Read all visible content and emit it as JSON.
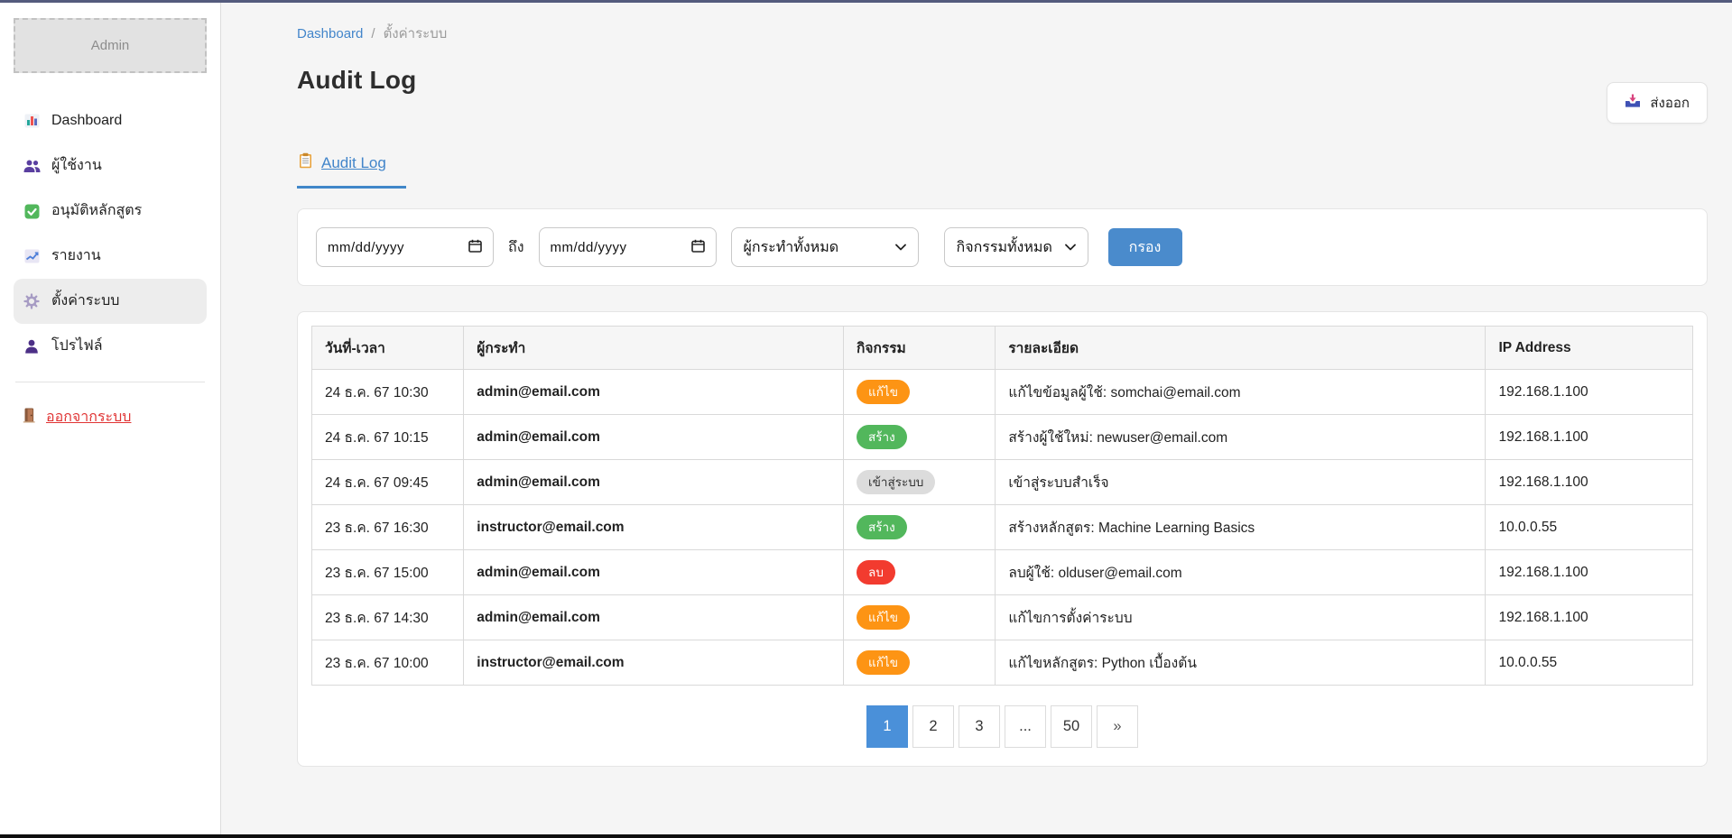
{
  "chrome": {
    "top_bar_color": "#545b7d",
    "bottom_bar_color": "#0e0e0e"
  },
  "sidebar": {
    "brand": "Admin",
    "items": [
      {
        "label": "Dashboard",
        "icon": "dashboard-icon",
        "active": false
      },
      {
        "label": "ผู้ใช้งาน",
        "icon": "users-icon",
        "active": false
      },
      {
        "label": "อนุมัติหลักสูตร",
        "icon": "approve-icon",
        "active": false
      },
      {
        "label": "รายงาน",
        "icon": "report-icon",
        "active": false
      },
      {
        "label": "ตั้งค่าระบบ",
        "icon": "settings-icon",
        "active": true
      },
      {
        "label": "โปรไฟล์",
        "icon": "profile-icon",
        "active": false
      }
    ],
    "logout_label": "ออกจากระบบ",
    "logout_color": "#e03434"
  },
  "breadcrumb": {
    "home": "Dashboard",
    "separator": "/",
    "current": "ตั้งค่าระบบ"
  },
  "header": {
    "title": "Audit Log",
    "export_label": "ส่งออก",
    "export_icon": "download-tray-icon"
  },
  "tabs": [
    {
      "label": "Audit Log",
      "icon": "clipboard-icon",
      "active": true
    }
  ],
  "filters": {
    "date_from_value": "mm/dd/yyyy",
    "to_label": "ถึง",
    "date_to_value": "mm/dd/yyyy",
    "actor_select_value": "ผู้กระทำทั้งหมด",
    "activity_select_value": "กิจกรรมทั้งหมด",
    "filter_button_label": "กรอง",
    "filter_button_color": "#4a8bcc",
    "calendar_icon": "calendar-icon",
    "chevron_icon": "chevron-down-icon"
  },
  "table": {
    "columns": [
      "วันที่-เวลา",
      "ผู้กระทำ",
      "กิจกรรม",
      "รายละเอียด",
      "IP Address"
    ],
    "rows": [
      {
        "datetime": "24 ธ.ค. 67 10:30",
        "actor": "admin@email.com",
        "action": "แก้ไข",
        "action_type": "edit",
        "detail": "แก้ไขข้อมูลผู้ใช้: somchai@email.com",
        "ip": "192.168.1.100"
      },
      {
        "datetime": "24 ธ.ค. 67 10:15",
        "actor": "admin@email.com",
        "action": "สร้าง",
        "action_type": "create",
        "detail": "สร้างผู้ใช้ใหม่: newuser@email.com",
        "ip": "192.168.1.100"
      },
      {
        "datetime": "24 ธ.ค. 67 09:45",
        "actor": "admin@email.com",
        "action": "เข้าสู่ระบบ",
        "action_type": "login",
        "detail": "เข้าสู่ระบบสำเร็จ",
        "ip": "192.168.1.100"
      },
      {
        "datetime": "23 ธ.ค. 67 16:30",
        "actor": "instructor@email.com",
        "action": "สร้าง",
        "action_type": "create",
        "detail": "สร้างหลักสูตร: Machine Learning Basics",
        "ip": "10.0.0.55"
      },
      {
        "datetime": "23 ธ.ค. 67 15:00",
        "actor": "admin@email.com",
        "action": "ลบ",
        "action_type": "delete",
        "detail": "ลบผู้ใช้: olduser@email.com",
        "ip": "192.168.1.100"
      },
      {
        "datetime": "23 ธ.ค. 67 14:30",
        "actor": "admin@email.com",
        "action": "แก้ไข",
        "action_type": "edit",
        "detail": "แก้ไขการตั้งค่าระบบ",
        "ip": "192.168.1.100"
      },
      {
        "datetime": "23 ธ.ค. 67 10:00",
        "actor": "instructor@email.com",
        "action": "แก้ไข",
        "action_type": "edit",
        "detail": "แก้ไขหลักสูตร: Python เบื้องต้น",
        "ip": "10.0.0.55"
      }
    ],
    "badge_colors": {
      "edit": "#fd9414",
      "create": "#52b75c",
      "login": "#dcdcdc",
      "delete": "#f23b2f"
    }
  },
  "pagination": {
    "pages": [
      "1",
      "2",
      "3",
      "...",
      "50",
      "»"
    ],
    "active_page": "1",
    "active_color": "#4a90d9"
  }
}
